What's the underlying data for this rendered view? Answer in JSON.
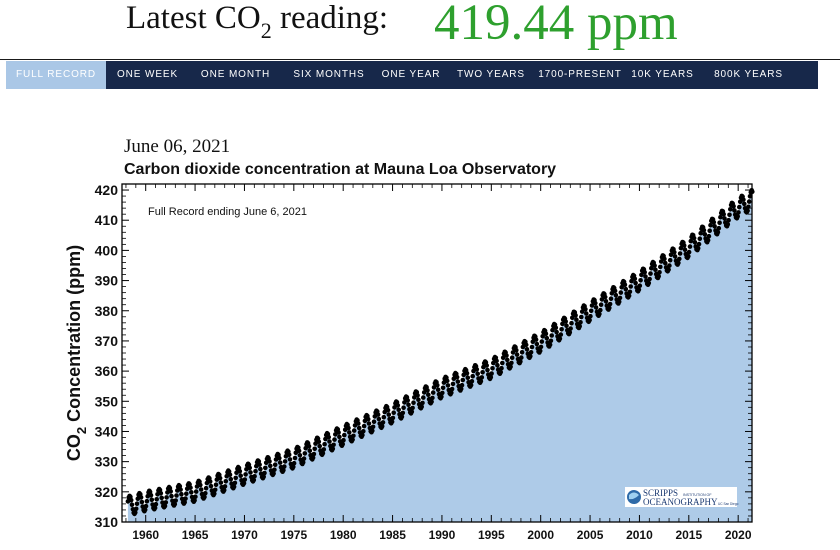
{
  "headline": {
    "label": "Latest CO",
    "label_sub": "2",
    "label_suffix": " reading:",
    "value": "419.44 ppm"
  },
  "tabs": [
    {
      "label": "FULL RECORD",
      "active": true
    },
    {
      "label": "ONE WEEK",
      "active": false
    },
    {
      "label": "ONE MONTH",
      "active": false
    },
    {
      "label": "SIX MONTHS",
      "active": false
    },
    {
      "label": "ONE YEAR",
      "active": false
    },
    {
      "label": "TWO YEARS",
      "active": false
    },
    {
      "label": "1700-PRESENT",
      "active": false
    },
    {
      "label": "10K YEARS",
      "active": false
    },
    {
      "label": "800K YEARS",
      "active": false
    }
  ],
  "chart_header": {
    "date": "June 06, 2021",
    "title": "Carbon dioxide concentration at Mauna Loa Observatory"
  },
  "colors": {
    "accent_value": "#2ea02e",
    "nav_bg": "#17284a",
    "nav_active": "#aac7e6",
    "area_fill": "#aecbe8"
  },
  "chart_data": {
    "type": "scatter",
    "annotation": "Full Record ending June 6, 2021",
    "ylabel": "CO2 Concentration (ppm)",
    "ylabel_parts": {
      "pre": "CO",
      "sub": "2",
      "post": " Concentration (ppm)"
    },
    "xlim": [
      1957.6,
      2021.4
    ],
    "ylim": [
      310,
      422
    ],
    "x_ticks": [
      1960,
      1965,
      1970,
      1975,
      1980,
      1985,
      1990,
      1995,
      2000,
      2005,
      2010,
      2015,
      2020
    ],
    "y_ticks": [
      310,
      320,
      330,
      340,
      350,
      360,
      370,
      380,
      390,
      400,
      410,
      420
    ],
    "trend_points": [
      [
        1958.2,
        315.3
      ],
      [
        1960,
        316.9
      ],
      [
        1965,
        320.0
      ],
      [
        1970,
        325.7
      ],
      [
        1975,
        331.1
      ],
      [
        1980,
        338.7
      ],
      [
        1985,
        346.1
      ],
      [
        1990,
        354.4
      ],
      [
        1995,
        360.8
      ],
      [
        2000,
        369.6
      ],
      [
        2005,
        379.8
      ],
      [
        2010,
        389.9
      ],
      [
        2015,
        401.0
      ],
      [
        2020,
        414.2
      ],
      [
        2021.42,
        416.8
      ]
    ],
    "seasonal_amplitude_ppm": 3.2,
    "last_reading": {
      "date": "June 6, 2021",
      "value": 419.44
    },
    "series": [
      {
        "values_note": "monthly dots along trend with seasonal cycle"
      }
    ],
    "fill": "area under curve",
    "grid": false
  },
  "logo": {
    "line1": "SCRIPPS",
    "line1_small": "INSTITUTION OF",
    "line2": "OCEANOGRAPHY",
    "line2_small": "UC San Diego"
  }
}
